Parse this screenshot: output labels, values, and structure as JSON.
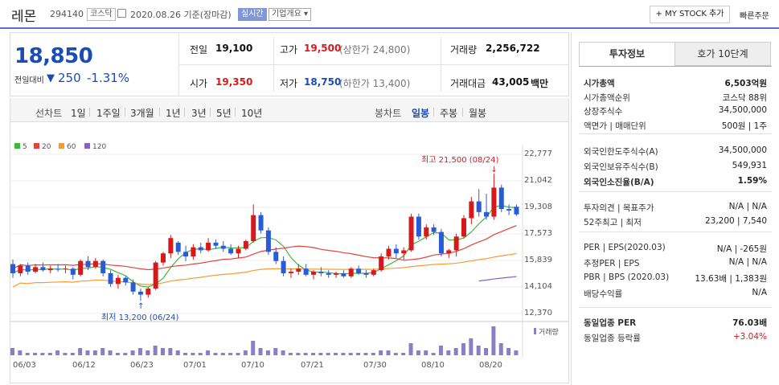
{
  "header": {
    "name": "레몬",
    "code": "294140",
    "market": "코스닥",
    "date": "2020.08.26 기준(장마감)",
    "realtime": "실시간",
    "company": "기업개요 ▾",
    "mystock": "+ MY STOCK 추가",
    "quick_order": "빠른주문"
  },
  "price": {
    "current": "18,850",
    "change_label": "전일대비",
    "change_arrow": "▼",
    "change": "250",
    "change_pct": "-1.31%"
  },
  "quote": {
    "prev_label": "전일",
    "prev": "19,100",
    "high_label": "고가",
    "high": "19,500",
    "upper_label": "(상한가 24,800)",
    "volume_label": "거래량",
    "volume": "2,256,722",
    "open_label": "시가",
    "open": "19,350",
    "low_label": "저가",
    "low": "18,750",
    "lower_label": "(하한가 13,400)",
    "amount_label": "거래대금",
    "amount": "43,005",
    "amount_unit": "백만"
  },
  "period_bar": {
    "line_label": "선차트",
    "periods": [
      "1일",
      "1주일",
      "3개월",
      "1년",
      "3년",
      "5년",
      "10년"
    ],
    "candle_label": "봉차트",
    "candles": [
      "일봉",
      "주봉",
      "월봉"
    ],
    "active_candle": "일봉"
  },
  "chart_data": {
    "type": "candlestick",
    "legend": [
      {
        "name": "5",
        "color": "#3cb83c"
      },
      {
        "name": "20",
        "color": "#e0443e"
      },
      {
        "name": "60",
        "color": "#f59b30"
      },
      {
        "name": "120",
        "color": "#8a5fc7"
      }
    ],
    "y_ticks": [
      "22,777",
      "21,042",
      "19,308",
      "17,573",
      "15,839",
      "14,104",
      "12,370"
    ],
    "ylim": [
      12370,
      22777
    ],
    "x_ticks": [
      "06/03",
      "06/12",
      "06/23",
      "07/01",
      "07/10",
      "07/21",
      "07/30",
      "08/10",
      "08/20"
    ],
    "max_annotation": "최고 21,500 (08/24)",
    "min_annotation": "최저 13,200 (06/24)",
    "volume_label": "거래량",
    "candles": [
      {
        "o": 15600,
        "h": 15900,
        "l": 14700,
        "c": 15000
      },
      {
        "o": 15000,
        "h": 15600,
        "l": 14800,
        "c": 15500
      },
      {
        "o": 15500,
        "h": 15700,
        "l": 14900,
        "c": 15100
      },
      {
        "o": 15100,
        "h": 15600,
        "l": 15000,
        "c": 15400
      },
      {
        "o": 15400,
        "h": 15700,
        "l": 15100,
        "c": 15200
      },
      {
        "o": 15200,
        "h": 15500,
        "l": 15000,
        "c": 15300
      },
      {
        "o": 15300,
        "h": 15600,
        "l": 15100,
        "c": 15250
      },
      {
        "o": 15250,
        "h": 15500,
        "l": 15000,
        "c": 15300
      },
      {
        "o": 15300,
        "h": 15400,
        "l": 14600,
        "c": 14900
      },
      {
        "o": 14900,
        "h": 15900,
        "l": 14800,
        "c": 15800
      },
      {
        "o": 15800,
        "h": 16100,
        "l": 15200,
        "c": 15400
      },
      {
        "o": 15400,
        "h": 16000,
        "l": 15300,
        "c": 15800
      },
      {
        "o": 15800,
        "h": 15900,
        "l": 14800,
        "c": 15000
      },
      {
        "o": 15000,
        "h": 15200,
        "l": 14100,
        "c": 14300
      },
      {
        "o": 14300,
        "h": 14900,
        "l": 14000,
        "c": 14700
      },
      {
        "o": 14700,
        "h": 14800,
        "l": 14200,
        "c": 14400
      },
      {
        "o": 14400,
        "h": 14600,
        "l": 13600,
        "c": 13800
      },
      {
        "o": 13800,
        "h": 14000,
        "l": 13200,
        "c": 13600
      },
      {
        "o": 13600,
        "h": 14100,
        "l": 13400,
        "c": 14000
      },
      {
        "o": 14000,
        "h": 15800,
        "l": 13900,
        "c": 15700
      },
      {
        "o": 15700,
        "h": 16400,
        "l": 15500,
        "c": 16300
      },
      {
        "o": 16300,
        "h": 17500,
        "l": 16000,
        "c": 17300
      },
      {
        "o": 17000,
        "h": 17100,
        "l": 16200,
        "c": 16400
      },
      {
        "o": 16400,
        "h": 16800,
        "l": 15800,
        "c": 16100
      },
      {
        "o": 16100,
        "h": 16900,
        "l": 15900,
        "c": 16700
      },
      {
        "o": 16700,
        "h": 17000,
        "l": 16300,
        "c": 16500
      },
      {
        "o": 16500,
        "h": 17300,
        "l": 16400,
        "c": 17000
      },
      {
        "o": 17000,
        "h": 17200,
        "l": 16600,
        "c": 16800
      },
      {
        "o": 16800,
        "h": 17100,
        "l": 16400,
        "c": 16600
      },
      {
        "o": 16600,
        "h": 16900,
        "l": 16200,
        "c": 16300
      },
      {
        "o": 16300,
        "h": 16800,
        "l": 16000,
        "c": 16600
      },
      {
        "o": 16600,
        "h": 17200,
        "l": 16500,
        "c": 17100
      },
      {
        "o": 17100,
        "h": 19500,
        "l": 17000,
        "c": 18800
      },
      {
        "o": 18800,
        "h": 19000,
        "l": 17600,
        "c": 17800
      },
      {
        "o": 17800,
        "h": 18000,
        "l": 16200,
        "c": 16400
      },
      {
        "o": 16400,
        "h": 16700,
        "l": 15600,
        "c": 15800
      },
      {
        "o": 15800,
        "h": 16100,
        "l": 14800,
        "c": 15000
      },
      {
        "o": 15000,
        "h": 15300,
        "l": 14700,
        "c": 15100
      },
      {
        "o": 15100,
        "h": 15600,
        "l": 14900,
        "c": 15300
      },
      {
        "o": 15300,
        "h": 15600,
        "l": 14800,
        "c": 14900
      },
      {
        "o": 14900,
        "h": 15200,
        "l": 14600,
        "c": 15100
      },
      {
        "o": 15100,
        "h": 15400,
        "l": 14800,
        "c": 15000
      },
      {
        "o": 15000,
        "h": 15200,
        "l": 14700,
        "c": 14900
      },
      {
        "o": 14900,
        "h": 15100,
        "l": 14700,
        "c": 15000
      },
      {
        "o": 15000,
        "h": 15200,
        "l": 14700,
        "c": 14800
      },
      {
        "o": 14800,
        "h": 15400,
        "l": 14700,
        "c": 15300
      },
      {
        "o": 15300,
        "h": 15500,
        "l": 14900,
        "c": 15000
      },
      {
        "o": 15000,
        "h": 15200,
        "l": 14700,
        "c": 14900
      },
      {
        "o": 14900,
        "h": 15300,
        "l": 14800,
        "c": 15200
      },
      {
        "o": 15200,
        "h": 16300,
        "l": 15100,
        "c": 16100
      },
      {
        "o": 16100,
        "h": 16800,
        "l": 15900,
        "c": 16600
      },
      {
        "o": 16600,
        "h": 16900,
        "l": 16000,
        "c": 16300
      },
      {
        "o": 16300,
        "h": 16700,
        "l": 15900,
        "c": 16500
      },
      {
        "o": 16500,
        "h": 18900,
        "l": 16400,
        "c": 18700
      },
      {
        "o": 18700,
        "h": 18900,
        "l": 17200,
        "c": 17400
      },
      {
        "o": 17400,
        "h": 18200,
        "l": 17200,
        "c": 18000
      },
      {
        "o": 18000,
        "h": 18200,
        "l": 17500,
        "c": 17700
      },
      {
        "o": 17700,
        "h": 17900,
        "l": 16100,
        "c": 16300
      },
      {
        "o": 16300,
        "h": 16600,
        "l": 16000,
        "c": 16500
      },
      {
        "o": 16500,
        "h": 17600,
        "l": 16100,
        "c": 17400
      },
      {
        "o": 17400,
        "h": 18800,
        "l": 17300,
        "c": 18600
      },
      {
        "o": 18600,
        "h": 20000,
        "l": 18200,
        "c": 19700
      },
      {
        "o": 19700,
        "h": 20500,
        "l": 18700,
        "c": 19000
      },
      {
        "o": 19000,
        "h": 20200,
        "l": 18500,
        "c": 18700
      },
      {
        "o": 18700,
        "h": 21500,
        "l": 18500,
        "c": 20600
      },
      {
        "o": 20600,
        "h": 20800,
        "l": 19000,
        "c": 19200
      },
      {
        "o": 19200,
        "h": 19500,
        "l": 18800,
        "c": 19100
      },
      {
        "o": 19350,
        "h": 19500,
        "l": 18750,
        "c": 18850
      }
    ],
    "volumes": [
      3,
      2,
      1,
      1,
      1,
      1,
      2,
      1,
      1,
      3,
      2,
      2,
      3,
      2,
      1,
      1,
      2,
      3,
      2,
      4,
      3,
      3,
      2,
      1,
      1,
      1,
      2,
      1,
      1,
      1,
      1,
      2,
      6,
      3,
      2,
      3,
      2,
      1,
      1,
      1,
      1,
      1,
      1,
      1,
      1,
      1,
      1,
      1,
      1,
      2,
      2,
      1,
      1,
      5,
      2,
      2,
      1,
      4,
      2,
      3,
      5,
      7,
      4,
      3,
      12,
      5,
      3,
      2
    ]
  },
  "tabs": {
    "invest": "투자정보",
    "hoga": "호가 10단계"
  },
  "invest": [
    {
      "k": "시가총액",
      "v": "6,503억원",
      "bold": true
    },
    {
      "k": "시가총액순위",
      "v": "코스닥 88위"
    },
    {
      "k": "상장주식수",
      "v": "34,500,000"
    },
    {
      "k": "액면가 | 매매단위",
      "v": "500원 | 1주"
    },
    {
      "k": "외국인한도주식수(A)",
      "v": "34,500,000"
    },
    {
      "k": "외국인보유주식수(B)",
      "v": "549,931"
    },
    {
      "k": "외국인소진율(B/A)",
      "v": "1.59%",
      "bold": true
    },
    {
      "k": "투자의견 | 목표주가",
      "v": "N/A | N/A"
    },
    {
      "k": "52주최고 | 최저",
      "v": "23,200 | 7,540"
    },
    {
      "k": "PER | EPS(2020.03)",
      "v": "N/A | -265원"
    },
    {
      "k": "추정PER | EPS",
      "v": "N/A | N/A"
    },
    {
      "k": "PBR | BPS (2020.03)",
      "v": "13.63배 | 1,383원"
    },
    {
      "k": "배당수익률",
      "v": "N/A"
    },
    {
      "k": "동일업종 PER",
      "v": "76.03배",
      "bold": true
    },
    {
      "k": "동일업종 등락률",
      "v": "+3.04%",
      "red": true
    }
  ]
}
